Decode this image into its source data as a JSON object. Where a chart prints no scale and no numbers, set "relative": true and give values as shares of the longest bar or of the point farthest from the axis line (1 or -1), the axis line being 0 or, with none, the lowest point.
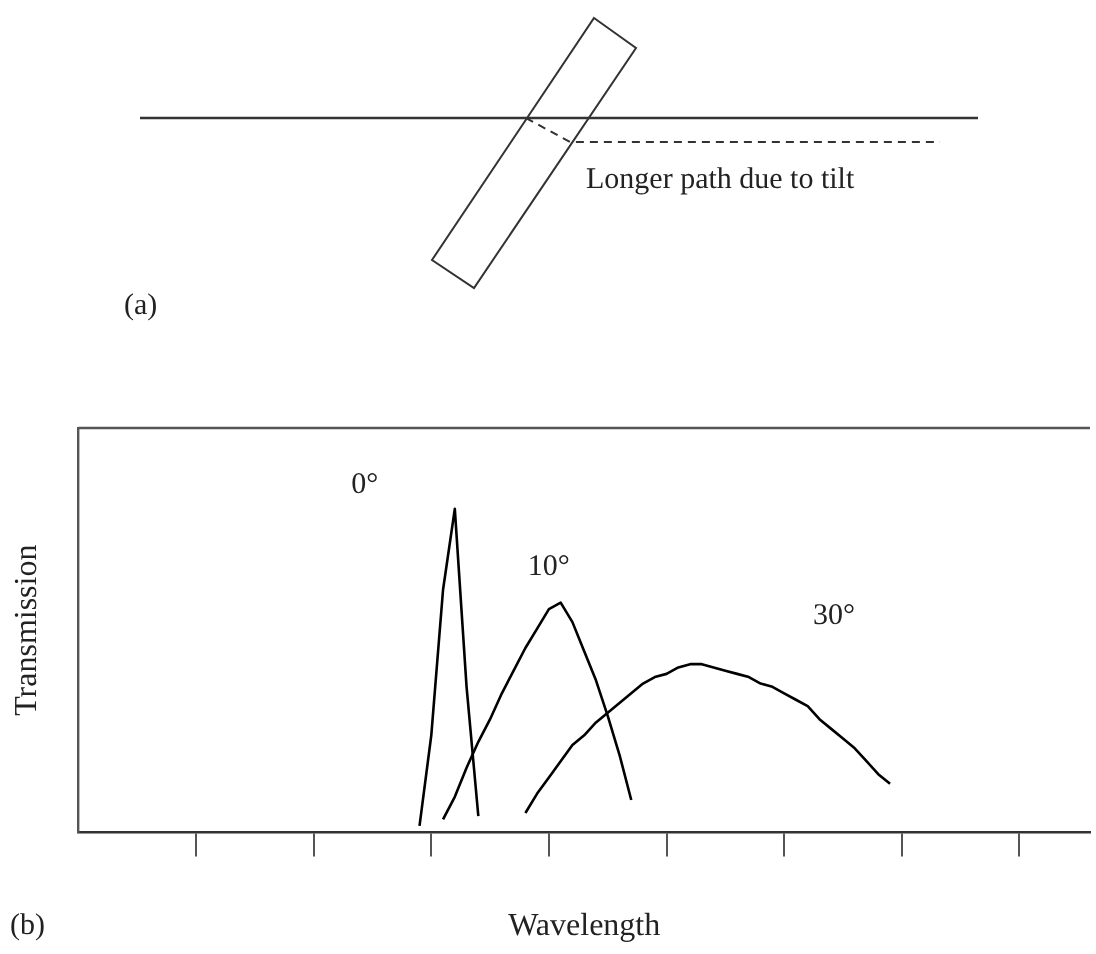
{
  "chart_data": {
    "type": "line",
    "relative": true,
    "xlabel": "Wavelength",
    "ylabel": "Transmission",
    "categories": [
      null,
      null,
      null,
      null,
      null,
      null,
      null,
      null,
      null,
      null,
      null,
      null,
      null,
      null,
      null,
      null,
      null,
      null,
      null,
      null,
      null,
      null,
      null,
      null,
      null,
      null,
      null,
      null,
      null,
      null,
      null,
      null,
      null,
      null,
      null,
      null,
      null,
      null,
      null,
      null,
      null,
      null,
      null,
      null,
      null,
      null,
      null,
      null,
      null,
      null,
      null,
      null,
      null,
      null,
      null,
      null,
      null,
      null,
      null,
      null,
      null,
      null,
      null,
      null,
      null,
      null,
      null,
      null,
      null,
      null,
      null,
      null,
      null,
      null,
      null,
      null,
      null,
      null,
      null,
      null,
      null,
      null,
      null,
      null,
      null,
      null,
      null
    ],
    "series": [
      {
        "name": "0°",
        "color": "#000000",
        "values": [
          null,
          null,
          null,
          null,
          null,
          null,
          null,
          null,
          null,
          null,
          null,
          null,
          null,
          null,
          null,
          null,
          null,
          null,
          null,
          null,
          null,
          null,
          null,
          null,
          null,
          null,
          null,
          null,
          null,
          0.02,
          0.3,
          0.75,
          1,
          0.45,
          0.05,
          null,
          null,
          null,
          null,
          null,
          null,
          null,
          null,
          null,
          null,
          null,
          null,
          null,
          null,
          null,
          null,
          null,
          null,
          null,
          null,
          null,
          null,
          null,
          null,
          null,
          null,
          null,
          null,
          null,
          null,
          null,
          null,
          null,
          null,
          null,
          null,
          null,
          null,
          null,
          null,
          null,
          null,
          null,
          null,
          null,
          null,
          null,
          null,
          null,
          null,
          null,
          null
        ]
      },
      {
        "name": "10°",
        "color": "#000000",
        "values": [
          null,
          null,
          null,
          null,
          null,
          null,
          null,
          null,
          null,
          null,
          null,
          null,
          null,
          null,
          null,
          null,
          null,
          null,
          null,
          null,
          null,
          null,
          null,
          null,
          null,
          null,
          null,
          null,
          null,
          null,
          null,
          0.04,
          0.11,
          0.2,
          0.28,
          0.35,
          0.43,
          0.5,
          0.57,
          0.63,
          0.69,
          0.71,
          0.65,
          0.56,
          0.47,
          0.36,
          0.24,
          0.1,
          null,
          null,
          null,
          null,
          null,
          null,
          null,
          null,
          null,
          null,
          null,
          null,
          null,
          null,
          null,
          null,
          null,
          null,
          null,
          null,
          null,
          null,
          null,
          null,
          null,
          null,
          null,
          null,
          null,
          null,
          null,
          null,
          null,
          null,
          null,
          null,
          null,
          null,
          null
        ]
      },
      {
        "name": "30°",
        "color": "#000000",
        "values": [
          null,
          null,
          null,
          null,
          null,
          null,
          null,
          null,
          null,
          null,
          null,
          null,
          null,
          null,
          null,
          null,
          null,
          null,
          null,
          null,
          null,
          null,
          null,
          null,
          null,
          null,
          null,
          null,
          null,
          null,
          null,
          null,
          null,
          null,
          null,
          null,
          null,
          null,
          0.06,
          0.12,
          0.17,
          0.22,
          0.27,
          0.3,
          0.34,
          0.37,
          0.4,
          0.43,
          0.46,
          0.48,
          0.49,
          0.51,
          0.52,
          0.52,
          0.51,
          0.5,
          0.49,
          0.48,
          0.46,
          0.45,
          0.43,
          0.41,
          0.39,
          0.35,
          0.32,
          0.29,
          0.26,
          0.22,
          0.18,
          0.15,
          null,
          null,
          null,
          null,
          null,
          null,
          null,
          null,
          null,
          null,
          null,
          null,
          null,
          null,
          null,
          null,
          null
        ]
      }
    ],
    "annotations": [
      "Longer path due to tilt",
      "(a)",
      "(b)"
    ],
    "grid": false,
    "legend": false,
    "marker": "none",
    "line_style": "solid"
  }
}
